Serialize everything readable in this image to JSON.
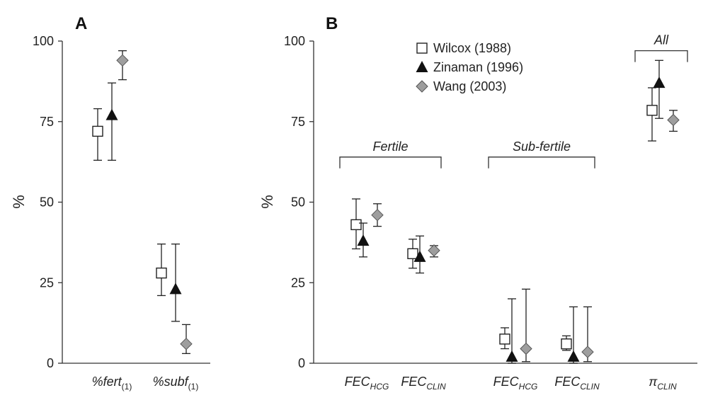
{
  "chart_data": [
    {
      "panel_label": "A",
      "type": "scatter",
      "ylabel": "%",
      "ylim": [
        0,
        100
      ],
      "yticks": [
        "0",
        "25",
        "50",
        "75",
        "100"
      ],
      "categories": [
        {
          "main": "%fert",
          "sub": "(1)",
          "sub_italic": false
        },
        {
          "main": "%subf",
          "sub": "(1)",
          "sub_italic": false
        }
      ],
      "series": [
        {
          "name": "Wilcox (1988)",
          "marker": "square",
          "points": [
            {
              "cat": 0,
              "y": 72,
              "lo": 63,
              "hi": 79
            },
            {
              "cat": 1,
              "y": 28,
              "lo": 21,
              "hi": 37
            }
          ]
        },
        {
          "name": "Zinaman (1996)",
          "marker": "triangle",
          "points": [
            {
              "cat": 0,
              "y": 77,
              "lo": 63,
              "hi": 87
            },
            {
              "cat": 1,
              "y": 23,
              "lo": 13,
              "hi": 37
            }
          ]
        },
        {
          "name": "Wang (2003)",
          "marker": "diamond",
          "points": [
            {
              "cat": 0,
              "y": 94,
              "lo": 88,
              "hi": 97
            },
            {
              "cat": 1,
              "y": 6,
              "lo": 3,
              "hi": 12
            }
          ]
        }
      ]
    },
    {
      "panel_label": "B",
      "type": "scatter",
      "ylabel": "%",
      "ylim": [
        0,
        100
      ],
      "yticks": [
        "0",
        "25",
        "50",
        "75",
        "100"
      ],
      "categories": [
        {
          "main": "FEC",
          "sub": "HCG",
          "sub_italic": true
        },
        {
          "main": "FEC",
          "sub": "CLIN",
          "sub_italic": true
        },
        {
          "main": "FEC",
          "sub": "HCG",
          "sub_italic": true
        },
        {
          "main": "FEC",
          "sub": "CLIN",
          "sub_italic": true
        },
        {
          "main": "π",
          "sub": "CLIN",
          "sub_italic": true
        }
      ],
      "groups": [
        {
          "label": "Fertile",
          "from": 0,
          "to": 1,
          "y": 64
        },
        {
          "label": "Sub-fertile",
          "from": 2,
          "to": 3,
          "y": 64
        },
        {
          "label": "All",
          "from": 4,
          "to": 4,
          "y": 97
        }
      ],
      "legend": [
        "Wilcox (1988)",
        "Zinaman (1996)",
        "Wang (2003)"
      ],
      "legend_position": "top-center",
      "series": [
        {
          "name": "Wilcox (1988)",
          "marker": "square",
          "points": [
            {
              "cat": 0,
              "y": 43,
              "lo": 35.5,
              "hi": 51
            },
            {
              "cat": 1,
              "y": 34,
              "lo": 29.5,
              "hi": 38.5
            },
            {
              "cat": 2,
              "y": 7.5,
              "lo": 4.5,
              "hi": 11
            },
            {
              "cat": 3,
              "y": 6,
              "lo": 4,
              "hi": 8.5
            },
            {
              "cat": 4,
              "y": 78.5,
              "lo": 69,
              "hi": 85.5
            }
          ]
        },
        {
          "name": "Zinaman (1996)",
          "marker": "triangle",
          "points": [
            {
              "cat": 0,
              "y": 38,
              "lo": 33,
              "hi": 43.5
            },
            {
              "cat": 1,
              "y": 33,
              "lo": 28,
              "hi": 39.5
            },
            {
              "cat": 2,
              "y": 2,
              "lo": 0,
              "hi": 20
            },
            {
              "cat": 3,
              "y": 2,
              "lo": 0,
              "hi": 17.5
            },
            {
              "cat": 4,
              "y": 87,
              "lo": 76,
              "hi": 94
            }
          ]
        },
        {
          "name": "Wang (2003)",
          "marker": "diamond",
          "points": [
            {
              "cat": 0,
              "y": 46,
              "lo": 42.5,
              "hi": 49.5
            },
            {
              "cat": 1,
              "y": 35,
              "lo": 33,
              "hi": 36.5
            },
            {
              "cat": 2,
              "y": 4.5,
              "lo": 0.5,
              "hi": 23
            },
            {
              "cat": 3,
              "y": 3.5,
              "lo": 0.5,
              "hi": 17.5
            },
            {
              "cat": 4,
              "y": 75.5,
              "lo": 72,
              "hi": 78.5
            }
          ]
        }
      ]
    }
  ]
}
